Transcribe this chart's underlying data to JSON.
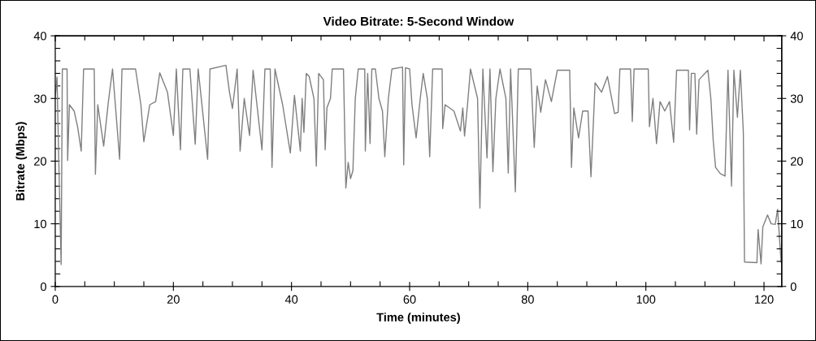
{
  "chart_data": {
    "type": "line",
    "title": "Video Bitrate: 5-Second Window",
    "xlabel": "Time (minutes)",
    "ylabel": "Bitrate (Mbps)",
    "xlim": [
      0,
      123
    ],
    "ylim": [
      0,
      40
    ],
    "y2lim": [
      0,
      40
    ],
    "xticks": [
      0,
      {
        "value": 5,
        "label": null
      },
      {
        "value": 10,
        "label": null
      },
      {
        "value": 15,
        "label": null
      },
      20,
      {
        "value": 25,
        "label": null
      },
      {
        "value": 30,
        "label": null
      },
      {
        "value": 35,
        "label": null
      },
      40,
      {
        "value": 45,
        "label": null
      },
      {
        "value": 50,
        "label": null
      },
      {
        "value": 55,
        "label": null
      },
      60,
      {
        "value": 65,
        "label": null
      },
      {
        "value": 70,
        "label": null
      },
      {
        "value": 75,
        "label": null
      },
      80,
      {
        "value": 85,
        "label": null
      },
      {
        "value": 90,
        "label": null
      },
      {
        "value": 95,
        "label": null
      },
      100,
      {
        "value": 105,
        "label": null
      },
      {
        "value": 110,
        "label": null
      },
      {
        "value": 115,
        "label": null
      },
      120
    ],
    "yticks": [
      0,
      {
        "value": 2,
        "label": null
      },
      {
        "value": 4,
        "label": null
      },
      {
        "value": 6,
        "label": null
      },
      {
        "value": 8,
        "label": null
      },
      10,
      {
        "value": 12,
        "label": null
      },
      {
        "value": 14,
        "label": null
      },
      {
        "value": 16,
        "label": null
      },
      {
        "value": 18,
        "label": null
      },
      20,
      {
        "value": 22,
        "label": null
      },
      {
        "value": 24,
        "label": null
      },
      {
        "value": 26,
        "label": null
      },
      {
        "value": 28,
        "label": null
      },
      30,
      {
        "value": 32,
        "label": null
      },
      {
        "value": 34,
        "label": null
      },
      {
        "value": 36,
        "label": null
      },
      {
        "value": 38,
        "label": null
      },
      40
    ],
    "y2ticks": [
      0,
      {
        "value": 2,
        "label": null
      },
      {
        "value": 4,
        "label": null
      },
      {
        "value": 6,
        "label": null
      },
      {
        "value": 8,
        "label": null
      },
      10,
      {
        "value": 12,
        "label": null
      },
      {
        "value": 14,
        "label": null
      },
      {
        "value": 16,
        "label": null
      },
      {
        "value": 18,
        "label": null
      },
      20,
      {
        "value": 22,
        "label": null
      },
      {
        "value": 24,
        "label": null
      },
      {
        "value": 26,
        "label": null
      },
      {
        "value": 28,
        "label": null
      },
      30,
      {
        "value": 32,
        "label": null
      },
      {
        "value": 34,
        "label": null
      },
      {
        "value": 36,
        "label": null
      },
      {
        "value": 38,
        "label": null
      },
      40
    ],
    "series": [
      {
        "color": "#7f7f7f",
        "x": [
          0.0,
          0.3,
          0.6,
          1.0,
          1.2,
          2.0,
          2.1,
          2.4,
          3.2,
          3.8,
          4.4,
          4.8,
          6.6,
          6.8,
          7.2,
          8.2,
          9.0,
          9.7,
          10.9,
          11.3,
          13.6,
          14.5,
          15.0,
          16.0,
          17.0,
          17.7,
          19.0,
          20.0,
          20.5,
          21.2,
          21.6,
          22.8,
          23.7,
          24.2,
          25.8,
          26.2,
          28.9,
          29.5,
          30.0,
          30.8,
          31.3,
          32.0,
          32.9,
          33.5,
          35.0,
          35.5,
          36.4,
          36.7,
          37.2,
          38.5,
          39.8,
          40.5,
          41.5,
          41.8,
          42.1,
          42.5,
          43.0,
          43.8,
          44.2,
          44.6,
          45.4,
          45.7,
          46.0,
          46.6,
          46.9,
          48.8,
          49.2,
          49.6,
          50.0,
          50.4,
          50.8,
          51.3,
          52.4,
          52.5,
          52.9,
          53.3,
          53.6,
          54.2,
          54.8,
          55.4,
          55.8,
          56.4,
          57.0,
          58.8,
          59.0,
          59.3,
          60.0,
          60.4,
          61.1,
          61.8,
          62.3,
          63.0,
          63.4,
          63.9,
          65.5,
          65.6,
          66.0,
          67.5,
          68.6,
          69.0,
          69.3,
          69.8,
          70.3,
          71.5,
          71.9,
          72.4,
          73.1,
          73.6,
          74.1,
          74.6,
          75.3,
          76.3,
          76.7,
          77.1,
          77.9,
          78.4,
          80.5,
          81.1,
          81.6,
          82.2,
          83.0,
          84.0,
          85.0,
          87.1,
          87.4,
          87.8,
          88.6,
          89.3,
          90.2,
          90.7,
          91.0,
          91.4,
          92.5,
          93.5,
          94.7,
          95.3,
          95.6,
          97.4,
          97.7,
          98.0,
          100.4,
          100.6,
          101.2,
          101.8,
          102.4,
          103.2,
          104.0,
          104.7,
          105.2,
          107.2,
          107.4,
          107.7,
          108.3,
          108.6,
          109.0,
          110.5,
          111.0,
          111.4,
          111.8,
          112.6,
          113.4,
          113.9,
          114.5,
          114.9,
          115.5,
          116.0,
          116.5,
          116.7,
          118.8,
          119.0,
          119.5,
          119.8,
          120.6,
          121.2,
          121.9,
          122.3,
          122.7,
          122.9
        ],
        "values": [
          30.2,
          33.4,
          20.0,
          3.5,
          34.7,
          34.7,
          20.1,
          29.0,
          28.0,
          25.4,
          21.6,
          34.7,
          34.7,
          17.9,
          29.0,
          22.4,
          29.5,
          34.7,
          20.3,
          34.7,
          34.7,
          29.0,
          23.1,
          29.0,
          29.5,
          34.1,
          31.0,
          24.1,
          34.7,
          21.8,
          34.7,
          34.7,
          22.7,
          34.7,
          20.3,
          34.7,
          35.3,
          31.0,
          28.4,
          34.7,
          21.6,
          30.0,
          24.1,
          34.5,
          21.8,
          34.7,
          34.7,
          19.0,
          34.7,
          29.0,
          21.3,
          30.5,
          21.6,
          30.0,
          24.6,
          34.0,
          33.5,
          30.0,
          19.2,
          34.0,
          33.0,
          21.8,
          28.5,
          30.0,
          34.7,
          34.7,
          15.7,
          19.8,
          17.2,
          18.5,
          30.0,
          34.7,
          34.7,
          21.6,
          34.0,
          22.8,
          34.7,
          34.7,
          30.0,
          28.0,
          20.7,
          30.0,
          34.7,
          35.0,
          19.4,
          34.9,
          34.7,
          29.0,
          23.7,
          30.0,
          34.0,
          30.0,
          20.7,
          34.7,
          34.7,
          25.2,
          29.0,
          28.0,
          24.8,
          28.5,
          24.0,
          29.0,
          34.7,
          30.0,
          12.5,
          34.7,
          20.5,
          34.7,
          18.3,
          30.0,
          34.7,
          30.0,
          18.1,
          34.7,
          15.1,
          34.7,
          34.7,
          22.2,
          32.0,
          27.8,
          33.0,
          29.5,
          34.5,
          34.5,
          19.0,
          28.5,
          23.7,
          28.0,
          28.0,
          17.5,
          23.7,
          32.5,
          31.0,
          33.5,
          27.6,
          27.8,
          34.7,
          34.7,
          26.3,
          34.7,
          34.7,
          25.5,
          30.0,
          22.8,
          29.5,
          28.0,
          29.5,
          23.0,
          34.5,
          34.5,
          25.0,
          34.0,
          34.0,
          24.3,
          33.0,
          34.5,
          30.0,
          23.3,
          19.0,
          18.0,
          17.6,
          34.5,
          16.0,
          34.5,
          27.0,
          34.5,
          24.6,
          3.9,
          3.8,
          9.1,
          3.6,
          9.5,
          11.4,
          10.0,
          9.9,
          12.3,
          6.6,
          3.9
        ]
      }
    ]
  }
}
